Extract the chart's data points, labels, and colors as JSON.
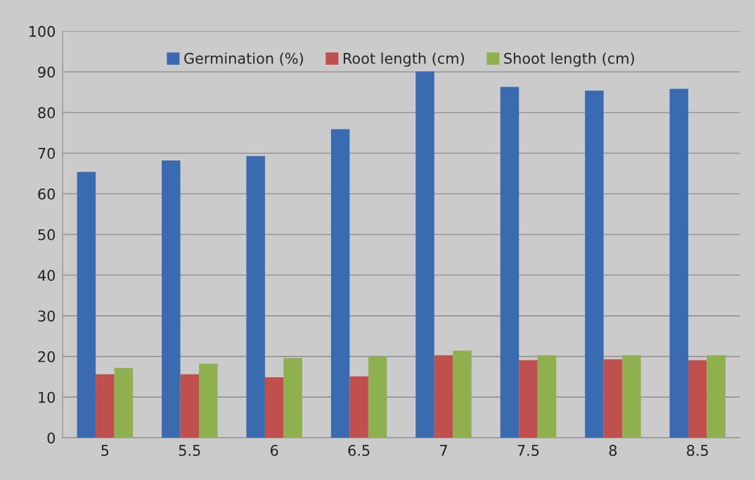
{
  "chart_data": {
    "type": "bar",
    "categories": [
      "5",
      "5.5",
      "6",
      "6.5",
      "7",
      "7.5",
      "8",
      "8.5"
    ],
    "series": [
      {
        "name": "Germination (%)",
        "color": "#3a6bb0",
        "values": [
          65.4,
          68.2,
          69.3,
          75.9,
          90.1,
          86.3,
          85.4,
          85.8
        ]
      },
      {
        "name": "Root length (cm)",
        "color": "#c0504d",
        "values": [
          15.6,
          15.6,
          14.9,
          15.1,
          20.3,
          19.1,
          19.3,
          19.1
        ]
      },
      {
        "name": "Shoot length (cm)",
        "color": "#8fb04f",
        "values": [
          17.2,
          18.2,
          19.6,
          20.0,
          21.4,
          20.3,
          20.3,
          20.3
        ]
      }
    ],
    "ylim": [
      0,
      100
    ],
    "yticks": [
      0,
      10,
      20,
      30,
      40,
      50,
      60,
      70,
      80,
      90,
      100
    ],
    "grid": "y",
    "legend": "top"
  }
}
